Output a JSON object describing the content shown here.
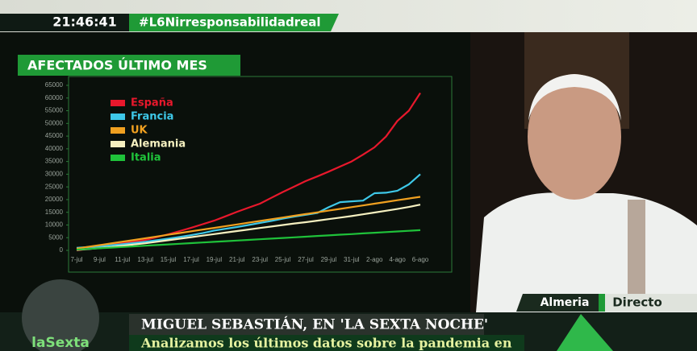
{
  "chart_data": {
    "type": "line",
    "title": "AFECTADOS ÚLTIMO MES",
    "categories": [
      "7-jul",
      null,
      "9-jul",
      null,
      "11-jul",
      null,
      "13-jul",
      null,
      "15-jul",
      null,
      "17-jul",
      null,
      "19-jul",
      null,
      "21-jul",
      null,
      "23-jul",
      null,
      "25-jul",
      null,
      "27-jul",
      null,
      "29-jul",
      null,
      "31-jul",
      null,
      "2-ago",
      null,
      "4-ago",
      null,
      "6-ago"
    ],
    "series": [
      {
        "name": "España",
        "color": "#e8182c",
        "values": [
          0,
          600,
          1300,
          2100,
          2900,
          3500,
          4100,
          5200,
          6300,
          7600,
          8900,
          10300,
          11700,
          13400,
          15200,
          16800,
          18400,
          20700,
          23000,
          25100,
          27300,
          29100,
          31000,
          33000,
          35000,
          37700,
          40600,
          44800,
          51000,
          55000,
          62000
        ]
      },
      {
        "name": "Francia",
        "color": "#3ec8e8",
        "values": [
          1000,
          1300,
          1600,
          2000,
          2400,
          2900,
          3400,
          4000,
          4600,
          5300,
          6000,
          6800,
          7800,
          8500,
          9200,
          10000,
          10800,
          11600,
          12500,
          13300,
          14000,
          14700,
          17000,
          19000,
          19300,
          19600,
          22500,
          22700,
          23500,
          26000,
          30000
        ]
      },
      {
        "name": "UK",
        "color": "#f0a020",
        "values": [
          700,
          1380,
          2060,
          2740,
          3420,
          4100,
          4780,
          5460,
          6140,
          6820,
          7500,
          8180,
          8860,
          9540,
          10220,
          10900,
          11580,
          12260,
          12940,
          13620,
          14300,
          14980,
          15660,
          16340,
          17020,
          17700,
          18380,
          19060,
          19740,
          20420,
          21100
        ]
      },
      {
        "name": "Alemania",
        "color": "#f5f0c0",
        "values": [
          200,
          500,
          900,
          1300,
          1800,
          2300,
          2800,
          3400,
          4000,
          4600,
          5200,
          5800,
          6400,
          7000,
          7600,
          8200,
          8800,
          9400,
          10000,
          10600,
          11100,
          11700,
          12300,
          12900,
          13500,
          14200,
          14900,
          15600,
          16300,
          17100,
          18000
        ]
      },
      {
        "name": "Italia",
        "color": "#1fc23a",
        "values": [
          300,
          560,
          810,
          1070,
          1320,
          1580,
          1830,
          2090,
          2340,
          2600,
          2850,
          3110,
          3360,
          3620,
          3870,
          4130,
          4380,
          4640,
          4890,
          5150,
          5400,
          5660,
          5910,
          6170,
          6420,
          6680,
          6930,
          7190,
          7440,
          7700,
          7950
        ]
      }
    ],
    "ylim": [
      0,
      65000
    ],
    "yticks": [
      0,
      5000,
      10000,
      15000,
      20000,
      25000,
      30000,
      35000,
      40000,
      45000,
      50000,
      55000,
      60000,
      65000
    ]
  },
  "broadcast": {
    "clock": "21:46:41",
    "hashtag": "#L6Nirresponsabilidadreal",
    "location": "Almeria",
    "status": "Directo",
    "channel": "laSexta",
    "headline": "MIGUEL SEBASTIÁN, EN 'LA SEXTA NOCHE'",
    "subheadline": "Analizamos los últimos datos sobre la pandemia en"
  }
}
